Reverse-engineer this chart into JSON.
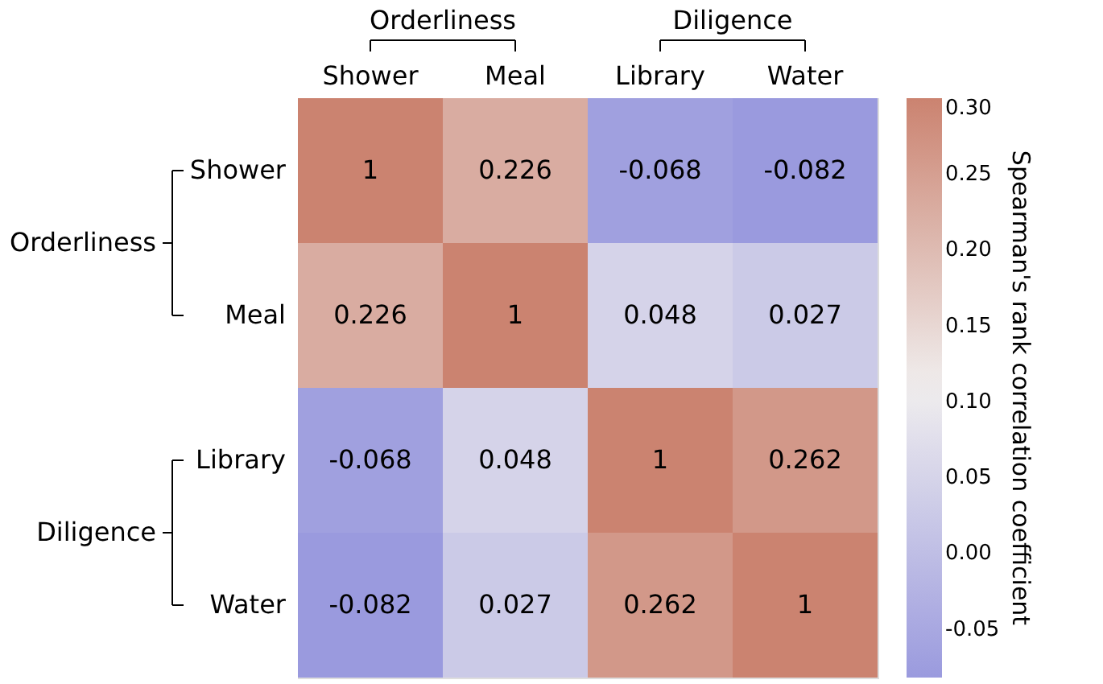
{
  "chart_data": {
    "type": "heatmap",
    "categories": [
      "Shower",
      "Meal",
      "Library",
      "Water"
    ],
    "y_categories": [
      "Shower",
      "Meal",
      "Library",
      "Water"
    ],
    "cells": [
      [
        1,
        0.226,
        -0.068,
        -0.082
      ],
      [
        0.226,
        1,
        0.048,
        0.027
      ],
      [
        -0.068,
        0.048,
        1,
        0.262
      ],
      [
        -0.082,
        0.027,
        0.262,
        1
      ]
    ],
    "data_labels": true,
    "clabel": "Spearman's rank correlation coefficient",
    "clim": [
      -0.082,
      0.3
    ],
    "cticks": [
      -0.05,
      {
        "value": 0,
        "label": "0.00"
      },
      0.05,
      {
        "value": 0.1,
        "label": "0.10"
      },
      0.15,
      {
        "value": 0.2,
        "label": "0.20"
      },
      0.25,
      {
        "value": 0.3,
        "label": "0.30"
      }
    ],
    "colors": [
      "#9a9ade",
      "#f0eeee",
      "#cb8370"
    ],
    "annotations": [
      "Orderliness",
      "Diligence",
      "Orderliness",
      "Diligence"
    ]
  }
}
